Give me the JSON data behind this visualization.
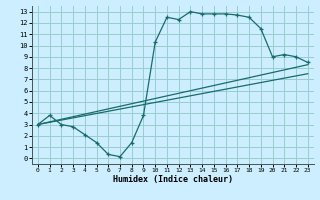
{
  "xlabel": "Humidex (Indice chaleur)",
  "bg_color": "#cceeff",
  "line_color": "#1a6b6b",
  "grid_color": "#99cccc",
  "xlim": [
    -0.5,
    23.5
  ],
  "ylim": [
    -0.5,
    13.5
  ],
  "xticks": [
    0,
    1,
    2,
    3,
    4,
    5,
    6,
    7,
    8,
    9,
    10,
    11,
    12,
    13,
    14,
    15,
    16,
    17,
    18,
    19,
    20,
    21,
    22,
    23
  ],
  "yticks": [
    0,
    1,
    2,
    3,
    4,
    5,
    6,
    7,
    8,
    9,
    10,
    11,
    12,
    13
  ],
  "line1_x": [
    0,
    1,
    2,
    3,
    4,
    5,
    6,
    7,
    8,
    9,
    10,
    11,
    12,
    13,
    14,
    15,
    16,
    17,
    18,
    19,
    20,
    21,
    22,
    23
  ],
  "line1_y": [
    3.0,
    3.8,
    3.0,
    2.8,
    2.1,
    1.4,
    0.35,
    0.15,
    1.4,
    3.8,
    10.3,
    12.5,
    12.3,
    13.0,
    12.8,
    12.8,
    12.8,
    12.7,
    12.5,
    11.5,
    9.0,
    9.2,
    9.0,
    8.5
  ],
  "line2_x": [
    0,
    23
  ],
  "line2_y": [
    3.0,
    8.3
  ],
  "line3_x": [
    0,
    23
  ],
  "line3_y": [
    3.0,
    7.5
  ]
}
